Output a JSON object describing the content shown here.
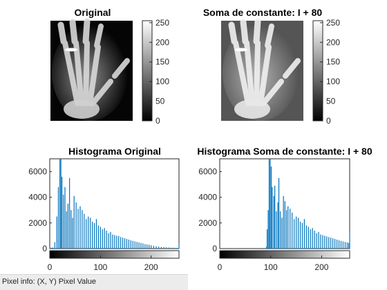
{
  "titles": {
    "original": "Original",
    "adjusted": "Soma de constante: I + 80",
    "hist_original": "Histograma Original",
    "hist_adjusted": "Histograma Soma de constante: I + 80"
  },
  "colorbar_ticks": [
    "250",
    "200",
    "150",
    "100",
    "50",
    "0"
  ],
  "status_bar": {
    "text": "Pixel info: (X, Y)  Pixel Value"
  },
  "colors": {
    "bar": "#0072bd",
    "axis": "#262626",
    "background": "#ffffff"
  },
  "chart_data": [
    {
      "type": "bar",
      "title": "Histograma Original",
      "xlim": [
        0,
        255
      ],
      "ylim": [
        0,
        7000
      ],
      "xticks": [
        "0",
        "100",
        "200"
      ],
      "yticks": [
        "0",
        "2000",
        "4000",
        "6000"
      ],
      "x": [
        2,
        4,
        6,
        10,
        14,
        17,
        20,
        22,
        24,
        27,
        30,
        33,
        36,
        39,
        42,
        45,
        48,
        52,
        56,
        60,
        64,
        68,
        72,
        76,
        80,
        84,
        88,
        92,
        96,
        100,
        104,
        108,
        112,
        116,
        120,
        124,
        128,
        132,
        136,
        140,
        144,
        148,
        152,
        156,
        160,
        164,
        168,
        172,
        176,
        180,
        184,
        188,
        192,
        196,
        200,
        205,
        210,
        215,
        220,
        225,
        230,
        235,
        240,
        245,
        250,
        255
      ],
      "values": [
        30,
        60,
        80,
        500,
        2500,
        4800,
        7000,
        7000,
        5600,
        4200,
        4800,
        2900,
        3500,
        5500,
        3000,
        2400,
        4100,
        3600,
        3100,
        3300,
        3000,
        2700,
        2300,
        2500,
        2400,
        2100,
        2000,
        2300,
        1800,
        1700,
        1500,
        1600,
        1400,
        1200,
        1300,
        1100,
        1050,
        1000,
        980,
        900,
        850,
        800,
        750,
        700,
        650,
        600,
        560,
        520,
        480,
        440,
        400,
        350,
        320,
        300,
        260,
        220,
        180,
        150,
        120,
        110,
        100,
        80,
        70,
        60,
        50,
        450
      ]
    },
    {
      "type": "bar",
      "title": "Histograma Soma de constante: I + 80",
      "xlim": [
        0,
        255
      ],
      "ylim": [
        0,
        7000
      ],
      "xticks": [
        "0",
        "100",
        "200"
      ],
      "yticks": [
        "0",
        "2000",
        "4000",
        "6000"
      ],
      "x": [
        92,
        93,
        95,
        97,
        99,
        101,
        103,
        106,
        108,
        111,
        114,
        116,
        119,
        122,
        125,
        128,
        131,
        134,
        138,
        142,
        146,
        150,
        154,
        158,
        162,
        166,
        170,
        174,
        178,
        182,
        186,
        190,
        194,
        198,
        202,
        206,
        210,
        214,
        218,
        222,
        226,
        230,
        234,
        238,
        242,
        246,
        250,
        253,
        255
      ],
      "values": [
        150,
        1500,
        3000,
        7000,
        7000,
        6400,
        4800,
        4100,
        4900,
        2900,
        3600,
        5500,
        2900,
        2400,
        4100,
        3700,
        3000,
        3300,
        3100,
        2800,
        2300,
        2500,
        2400,
        2100,
        2000,
        2300,
        1800,
        1700,
        1500,
        1600,
        1400,
        1200,
        1300,
        1100,
        1050,
        1000,
        950,
        900,
        850,
        800,
        750,
        700,
        650,
        600,
        560,
        520,
        480,
        440,
        1200
      ]
    }
  ]
}
